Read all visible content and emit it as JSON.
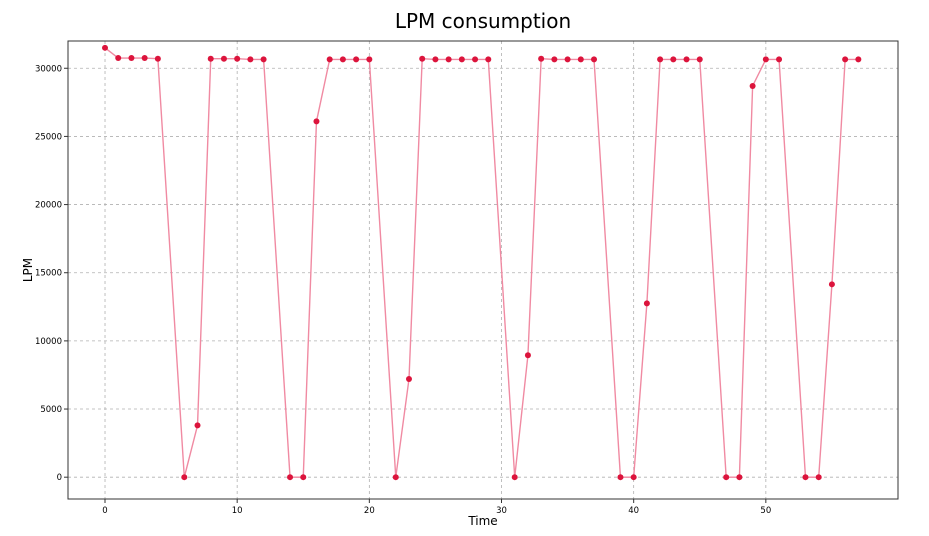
{
  "chart_data": {
    "type": "line",
    "title": "LPM consumption",
    "xlabel": "Time",
    "ylabel": "LPM",
    "xlim": [
      -2.8,
      60
    ],
    "ylim": [
      -1600,
      32000
    ],
    "xticks": [
      0,
      10,
      20,
      30,
      40,
      50
    ],
    "yticks": [
      0,
      5000,
      10000,
      15000,
      20000,
      25000,
      30000
    ],
    "grid": true,
    "colors": {
      "line": "#f08aa2",
      "marker": "#dc143c"
    },
    "series": [
      {
        "x": [
          0,
          1,
          2,
          3,
          4,
          6,
          7,
          8,
          9,
          10,
          11,
          12,
          14,
          15,
          16,
          17,
          18,
          19,
          20,
          22,
          23,
          24,
          25,
          26,
          27,
          28,
          29,
          31,
          32,
          33,
          34,
          35,
          36,
          37,
          39,
          40,
          41,
          42,
          43,
          44,
          45,
          47,
          48,
          49,
          50,
          51,
          53,
          54,
          55,
          56,
          57
        ],
        "y": [
          31500,
          30750,
          30750,
          30750,
          30700,
          0,
          3800,
          30700,
          30700,
          30700,
          30650,
          30650,
          0,
          0,
          26100,
          30650,
          30650,
          30650,
          30650,
          0,
          7200,
          30700,
          30650,
          30650,
          30650,
          30650,
          30650,
          0,
          8950,
          30700,
          30650,
          30650,
          30650,
          30650,
          0,
          0,
          12750,
          30650,
          30650,
          30650,
          30650,
          0,
          0,
          28700,
          30650,
          30650,
          0,
          0,
          14150,
          30650,
          30650
        ]
      }
    ]
  }
}
